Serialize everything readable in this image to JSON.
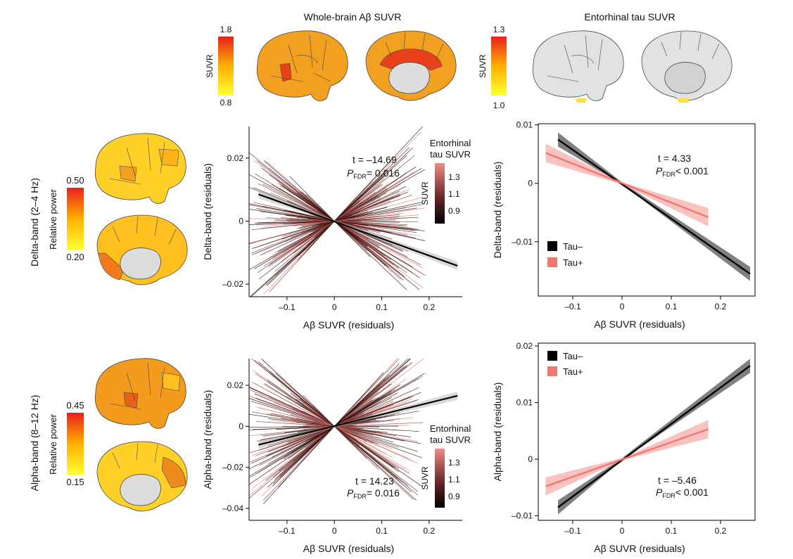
{
  "headers": {
    "amyloid": "Whole-brain Aβ SUVR",
    "tau": "Entorhinal tau SUVR"
  },
  "colorbars": {
    "amyloid": {
      "label": "SUVR",
      "max": "1.8",
      "min": "0.8"
    },
    "tau": {
      "label": "SUVR",
      "max": "1.3",
      "min": "1.0"
    },
    "delta": {
      "label": "Relative power",
      "max": "0.50",
      "min": "0.20"
    },
    "alpha": {
      "label": "Relative power",
      "max": "0.45",
      "min": "0.15"
    }
  },
  "row_labels": {
    "delta": "Delta-band (2–4 Hz)",
    "alpha": "Alpha-band (8–12 Hz)"
  },
  "legend": {
    "tau_neg": "Tau–",
    "tau_pos": "Tau+"
  },
  "inset_cbar": {
    "title1": "Entorhinal",
    "title2": "tau SUVR",
    "label": "SUVR",
    "ticks": [
      "1.3",
      "1.1",
      "0.9"
    ]
  },
  "colors": {
    "tau_neg": "#000000",
    "tau_pos": "#f07870",
    "brain_high": "#e8261c",
    "brain_low": "#ffec3d",
    "brain_gray": "#dddddd"
  },
  "chart_data": [
    {
      "type": "line",
      "id": "delta-spaghetti",
      "xlabel": "Aβ SUVR (residuals)",
      "ylabel": "Delta-band (residuals)",
      "xlim": [
        -0.18,
        0.27
      ],
      "ylim": [
        -0.024,
        0.03
      ],
      "xticks": [
        -0.1,
        0,
        0.1,
        0.2
      ],
      "xtick_labels": [
        "–0.1",
        "0",
        "0.1",
        "0.2"
      ],
      "yticks": [
        -0.02,
        0,
        0.02
      ],
      "ytick_labels": [
        "–0.02",
        "0",
        "0.02"
      ],
      "series": [
        {
          "x": [
            -0.16,
            0.26
          ],
          "y": [
            0.0085,
            -0.0142
          ]
        }
      ],
      "stats": {
        "t": "t = –14.69",
        "p": "= 0.016"
      }
    },
    {
      "type": "line",
      "id": "delta-group",
      "xlabel": "Aβ SUVR (residuals)",
      "ylabel": "Delta-band (residuals)",
      "xlim": [
        -0.17,
        0.27
      ],
      "ylim": [
        -0.0193,
        0.0102
      ],
      "xticks": [
        -0.1,
        0,
        0.1,
        0.2
      ],
      "xtick_labels": [
        "–0.1",
        "0",
        "0.1",
        "0.2"
      ],
      "yticks": [
        -0.01,
        0,
        0.01
      ],
      "ytick_labels": [
        "–0.01",
        "0",
        "0.01"
      ],
      "series": [
        {
          "name": "Tau–",
          "x": [
            -0.13,
            0.26
          ],
          "y": [
            0.0075,
            -0.0155
          ]
        },
        {
          "name": "Tau+",
          "x": [
            -0.155,
            0.175
          ],
          "y": [
            0.0052,
            -0.0058
          ]
        }
      ],
      "stats": {
        "t": "t = 4.33",
        "p": "< 0.001"
      }
    },
    {
      "type": "line",
      "id": "alpha-spaghetti",
      "xlabel": "Aβ SUVR (residuals)",
      "ylabel": "Alpha-band (residuals)",
      "xlim": [
        -0.18,
        0.27
      ],
      "ylim": [
        -0.0458,
        0.033
      ],
      "xticks": [
        -0.1,
        0,
        0.1,
        0.2
      ],
      "xtick_labels": [
        "–0.1",
        "0",
        "0.1",
        "0.2"
      ],
      "yticks": [
        -0.04,
        -0.02,
        0,
        0.02
      ],
      "ytick_labels": [
        "–0.04",
        "–0.02",
        "0",
        "0.02"
      ],
      "series": [
        {
          "x": [
            -0.16,
            0.26
          ],
          "y": [
            -0.009,
            0.0149
          ]
        }
      ],
      "stats": {
        "t": "t = 14.23",
        "p": "= 0.016"
      }
    },
    {
      "type": "line",
      "id": "alpha-group",
      "xlabel": "Aβ SUVR (residuals)",
      "ylabel": "Alpha-band (residuals)",
      "xlim": [
        -0.17,
        0.27
      ],
      "ylim": [
        -0.0108,
        0.0205
      ],
      "xticks": [
        -0.1,
        0,
        0.1,
        0.2
      ],
      "xtick_labels": [
        "–0.1",
        "0",
        "0.1",
        "0.2"
      ],
      "yticks": [
        -0.01,
        0,
        0.01,
        0.02
      ],
      "ytick_labels": [
        "–0.01",
        "0",
        "0.01",
        "0.02"
      ],
      "series": [
        {
          "name": "Tau–",
          "x": [
            -0.13,
            0.26
          ],
          "y": [
            -0.0085,
            0.0165
          ]
        },
        {
          "name": "Tau+",
          "x": [
            -0.155,
            0.175
          ],
          "y": [
            -0.0048,
            0.0053
          ]
        }
      ],
      "stats": {
        "t": "t = –5.46",
        "p": "< 0.001"
      }
    }
  ]
}
